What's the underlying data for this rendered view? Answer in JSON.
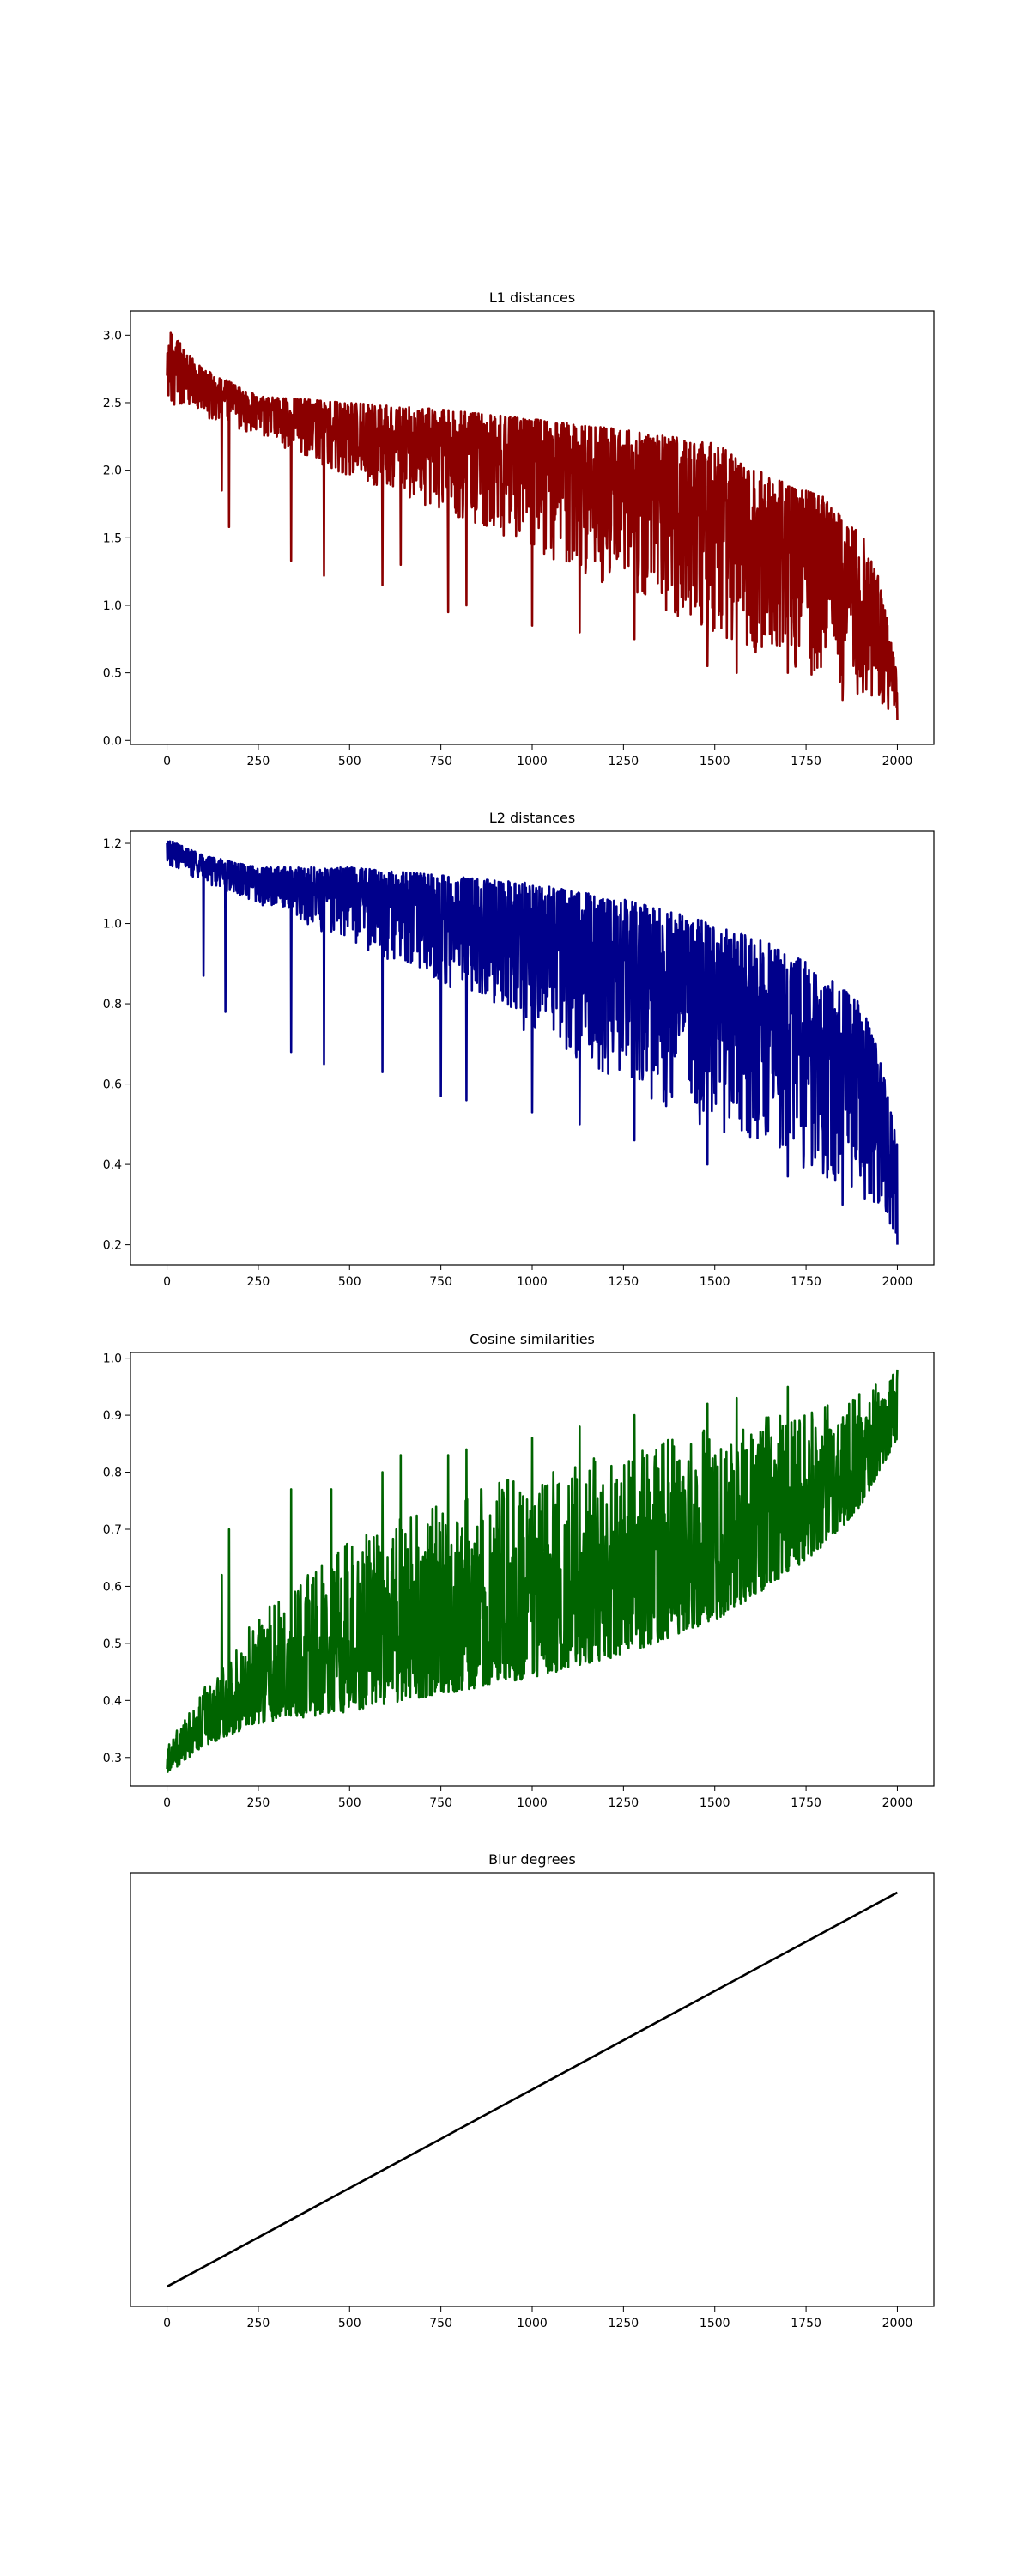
{
  "chart_data": [
    {
      "type": "line",
      "title": "L1 distances",
      "xlabel": "",
      "ylabel": "",
      "xlim": [
        -100,
        2100
      ],
      "ylim": [
        -0.03,
        3.18
      ],
      "xticks": [
        0,
        250,
        500,
        750,
        1000,
        1250,
        1500,
        1750,
        2000
      ],
      "yticks": [
        0.0,
        0.5,
        1.0,
        1.5,
        2.0,
        2.5,
        3.0
      ],
      "ytick_labels": [
        "0.0",
        "0.5",
        "1.0",
        "1.5",
        "2.0",
        "2.5",
        "3.0"
      ],
      "grid": false,
      "color": "#8b0000",
      "series": [
        {
          "x": [
            0,
            2000
          ],
          "y": [
            2.7,
            0.15
          ],
          "upper_envelope": {
            "x": [
              0,
              10,
              100,
              250,
              500,
              750,
              1000,
              1250,
              1500,
              1650,
              1800,
              1900,
              1950,
              2000
            ],
            "y": [
              2.85,
              3.02,
              2.75,
              2.55,
              2.5,
              2.45,
              2.38,
              2.3,
              2.2,
              1.95,
              1.8,
              1.55,
              1.2,
              0.5
            ]
          },
          "lower_envelope": {
            "x": [
              0,
              100,
              250,
              500,
              750,
              1000,
              1250,
              1500,
              1650,
              1800,
              1900,
              1950,
              2000
            ],
            "y": [
              2.5,
              2.4,
              2.25,
              1.95,
              1.7,
              1.4,
              1.1,
              0.8,
              0.6,
              0.42,
              0.3,
              0.25,
              0.1
            ]
          },
          "dips": {
            "x": [
              150,
              170,
              340,
              430,
              590,
              640,
              770,
              820,
              1000,
              1130,
              1280,
              1480,
              1560,
              1700,
              1850
            ],
            "y": [
              1.85,
              1.58,
              1.33,
              1.22,
              1.15,
              1.3,
              0.95,
              1.0,
              0.85,
              0.8,
              0.75,
              0.55,
              0.5,
              0.5,
              0.3
            ]
          }
        }
      ]
    },
    {
      "type": "line",
      "title": "L2 distances",
      "xlabel": "",
      "ylabel": "",
      "xlim": [
        -100,
        2100
      ],
      "ylim": [
        0.15,
        1.23
      ],
      "xticks": [
        0,
        250,
        500,
        750,
        1000,
        1250,
        1500,
        1750,
        2000
      ],
      "yticks": [
        0.2,
        0.4,
        0.6,
        0.8,
        1.0,
        1.2
      ],
      "ytick_labels": [
        "0.2",
        "0.4",
        "0.6",
        "0.8",
        "1.0",
        "1.2"
      ],
      "grid": false,
      "color": "#00008b",
      "series": [
        {
          "x": [
            0,
            2000
          ],
          "y": [
            1.2,
            0.2
          ],
          "upper_envelope": {
            "x": [
              0,
              100,
              250,
              500,
              750,
              1000,
              1250,
              1500,
              1650,
              1800,
              1900,
              1950,
              2000
            ],
            "y": [
              1.21,
              1.17,
              1.14,
              1.14,
              1.12,
              1.1,
              1.06,
              1.0,
              0.95,
              0.88,
              0.8,
              0.68,
              0.45
            ]
          },
          "lower_envelope": {
            "x": [
              0,
              100,
              250,
              500,
              750,
              1000,
              1250,
              1500,
              1650,
              1800,
              1900,
              1950,
              2000
            ],
            "y": [
              1.15,
              1.1,
              1.05,
              0.95,
              0.85,
              0.72,
              0.6,
              0.48,
              0.42,
              0.36,
              0.32,
              0.27,
              0.2
            ]
          },
          "dips": {
            "x": [
              100,
              160,
              340,
              430,
              590,
              750,
              820,
              1000,
              1130,
              1280,
              1480,
              1700,
              1850
            ],
            "y": [
              0.87,
              0.78,
              0.68,
              0.65,
              0.63,
              0.57,
              0.56,
              0.53,
              0.5,
              0.46,
              0.4,
              0.37,
              0.3
            ]
          }
        }
      ]
    },
    {
      "type": "line",
      "title": "Cosine similarities",
      "xlabel": "",
      "ylabel": "",
      "xlim": [
        -100,
        2100
      ],
      "ylim": [
        0.25,
        1.01
      ],
      "xticks": [
        0,
        250,
        500,
        750,
        1000,
        1250,
        1500,
        1750,
        2000
      ],
      "yticks": [
        0.3,
        0.4,
        0.5,
        0.6,
        0.7,
        0.8,
        0.9,
        1.0
      ],
      "ytick_labels": [
        "0.3",
        "0.4",
        "0.5",
        "0.6",
        "0.7",
        "0.8",
        "0.9",
        "1.0"
      ],
      "grid": false,
      "color": "#006400",
      "series": [
        {
          "x": [
            0,
            2000
          ],
          "y": [
            0.28,
            0.98
          ],
          "upper_envelope": {
            "x": [
              0,
              100,
              250,
              500,
              750,
              1000,
              1250,
              1500,
              1650,
              1800,
              1900,
              1950,
              2000
            ],
            "y": [
              0.32,
              0.42,
              0.55,
              0.68,
              0.75,
              0.8,
              0.84,
              0.88,
              0.9,
              0.92,
              0.94,
              0.96,
              0.98
            ]
          },
          "lower_envelope": {
            "x": [
              0,
              100,
              250,
              500,
              750,
              1000,
              1250,
              1500,
              1650,
              1800,
              1900,
              1950,
              2000
            ],
            "y": [
              0.27,
              0.32,
              0.36,
              0.38,
              0.41,
              0.44,
              0.48,
              0.54,
              0.6,
              0.67,
              0.74,
              0.8,
              0.86
            ]
          },
          "peaks": {
            "x": [
              150,
              170,
              340,
              450,
              590,
              640,
              770,
              820,
              1000,
              1130,
              1280,
              1480,
              1560,
              1700
            ],
            "y": [
              0.62,
              0.7,
              0.77,
              0.77,
              0.8,
              0.83,
              0.83,
              0.84,
              0.86,
              0.88,
              0.9,
              0.92,
              0.93,
              0.95
            ]
          }
        }
      ]
    },
    {
      "type": "line",
      "title": "Blur degrees",
      "xlabel": "",
      "ylabel": "",
      "xlim": [
        -100,
        2100
      ],
      "ylim": [
        -0.05,
        1.05
      ],
      "xticks": [
        0,
        250,
        500,
        750,
        1000,
        1250,
        1500,
        1750,
        2000
      ],
      "yticks": [],
      "ytick_labels": [],
      "grid": false,
      "color": "#000000",
      "series": [
        {
          "x": [
            0,
            2000
          ],
          "y": [
            0,
            1
          ]
        }
      ]
    }
  ]
}
